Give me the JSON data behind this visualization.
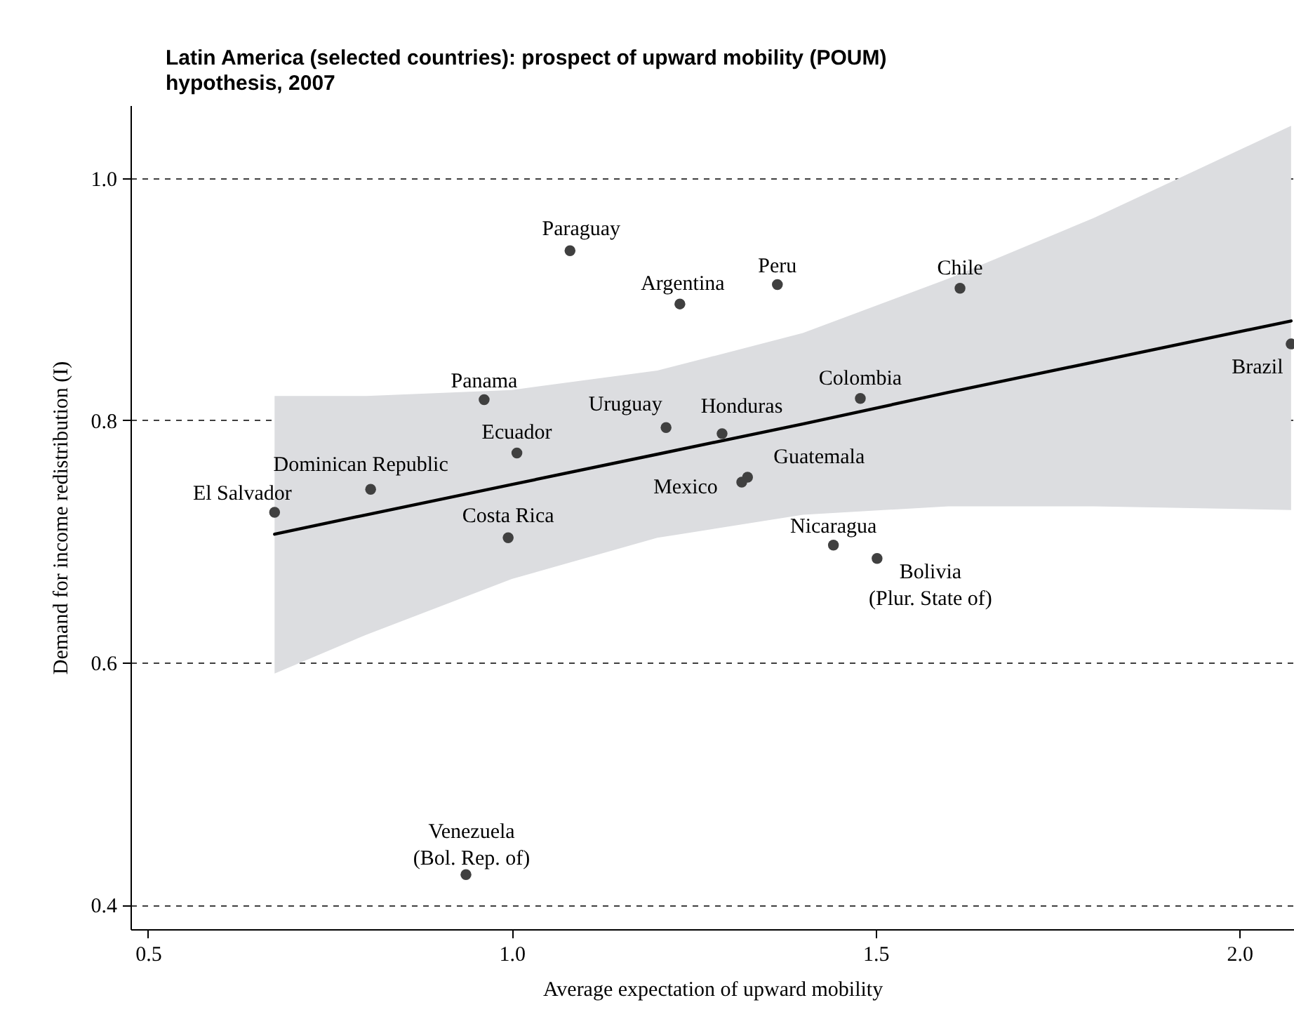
{
  "chart_data": {
    "type": "scatter",
    "title": "Latin America (selected countries): prospect of upward mobility (POUM)\nhypothesis, 2007",
    "xlabel": "Average expectation of upward mobility",
    "ylabel": "Demand for income redistribution (I)",
    "xlim": [
      0.476,
      2.075
    ],
    "ylim": [
      0.38,
      1.06
    ],
    "xticks": [
      {
        "value": 0.5,
        "label": "0.5"
      },
      {
        "value": 1,
        "label": "1.0"
      },
      {
        "value": 1.5,
        "label": "1.5"
      },
      {
        "value": 2,
        "label": "2.0"
      }
    ],
    "yticks": [
      {
        "value": 0.4,
        "label": "0.4"
      },
      {
        "value": 0.6,
        "label": "0.6"
      },
      {
        "value": 0.8,
        "label": "0.8"
      },
      {
        "value": 1,
        "label": "1.0"
      }
    ],
    "grid": "y",
    "marker": "circle",
    "series": [
      {
        "type": "line",
        "marker": "none",
        "color": "#000000",
        "x": [
          0.674,
          0.8,
          1.0,
          1.2,
          1.4,
          1.6,
          1.8,
          2.071
        ],
        "values": [
          0.706,
          0.722,
          0.747,
          0.772,
          0.797,
          0.823,
          0.848,
          0.882
        ],
        "lower": [
          0.591,
          0.623,
          0.669,
          0.703,
          0.722,
          0.729,
          0.729,
          0.726
        ],
        "upper": [
          0.82,
          0.82,
          0.825,
          0.841,
          0.872,
          0.917,
          0.967,
          1.043
        ]
      },
      {
        "color": "#404040",
        "x": [
          0.674,
          0.806,
          0.962,
          1.007,
          0.995,
          1.08,
          1.231,
          1.212,
          1.289,
          1.479,
          1.365,
          1.616,
          2.071,
          1.324,
          1.316,
          1.442,
          1.502,
          0.937
        ],
        "values": [
          0.724,
          0.743,
          0.817,
          0.773,
          0.703,
          0.94,
          0.896,
          0.794,
          0.789,
          0.818,
          0.912,
          0.909,
          0.863,
          0.753,
          0.749,
          0.697,
          0.686,
          0.425
        ],
        "value_labels": [
          "El Salvador",
          "Dominican Republic",
          "Panama",
          "Ecuador",
          "Costa Rica",
          "Paraguay",
          "Argentina",
          "Uruguay",
          "Honduras",
          "Colombia",
          "Peru",
          "Chile",
          "Brazil",
          "Guatemala",
          "Mexico",
          "Nicaragua",
          "Bolivia\n(Plur. State of)",
          "Venezuela\n(Bol. Rep. of)"
        ]
      }
    ]
  }
}
